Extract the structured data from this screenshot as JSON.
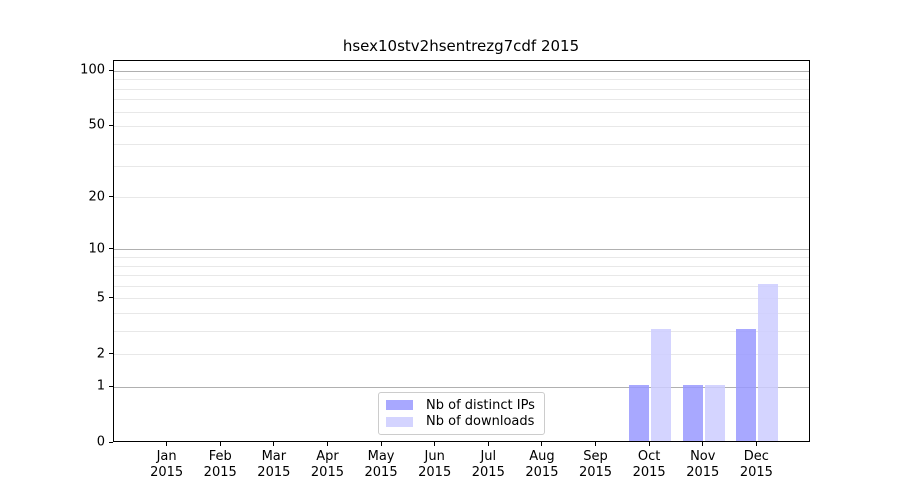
{
  "chart_data": {
    "type": "bar",
    "title": "hsex10stv2hsentrezg7cdf 2015",
    "categories": [
      "Jan 2015",
      "Feb 2015",
      "Mar 2015",
      "Apr 2015",
      "May 2015",
      "Jun 2015",
      "Jul 2015",
      "Aug 2015",
      "Sep 2015",
      "Oct 2015",
      "Nov 2015",
      "Dec 2015"
    ],
    "series": [
      {
        "name": "Nb of distinct IPs",
        "color": "#9999ff",
        "alpha": 0.85,
        "values": [
          0,
          0,
          0,
          0,
          0,
          0,
          0,
          0,
          0,
          1,
          1,
          3
        ]
      },
      {
        "name": "Nb of downloads",
        "color": "#ccccff",
        "alpha": 0.85,
        "values": [
          0,
          0,
          0,
          0,
          0,
          0,
          0,
          0,
          0,
          3,
          1,
          6
        ]
      }
    ],
    "yscale": "log10(1+x)",
    "ylim": [
      0,
      114
    ],
    "yticks": [
      0,
      1,
      2,
      5,
      10,
      20,
      50,
      100
    ],
    "major_gridlines": [
      1,
      10,
      100
    ],
    "minor_gridlines": [
      2,
      3,
      4,
      5,
      6,
      7,
      8,
      9,
      20,
      30,
      40,
      50,
      60,
      70,
      80,
      90
    ],
    "grid": true,
    "legend_position": "lower center"
  },
  "colors": {
    "axis": "#000000",
    "text": "#000000",
    "major_grid": "#b0b0b0",
    "minor_grid": "#e8e8e8",
    "background": "#ffffff",
    "legend_border": "#cccccc"
  }
}
